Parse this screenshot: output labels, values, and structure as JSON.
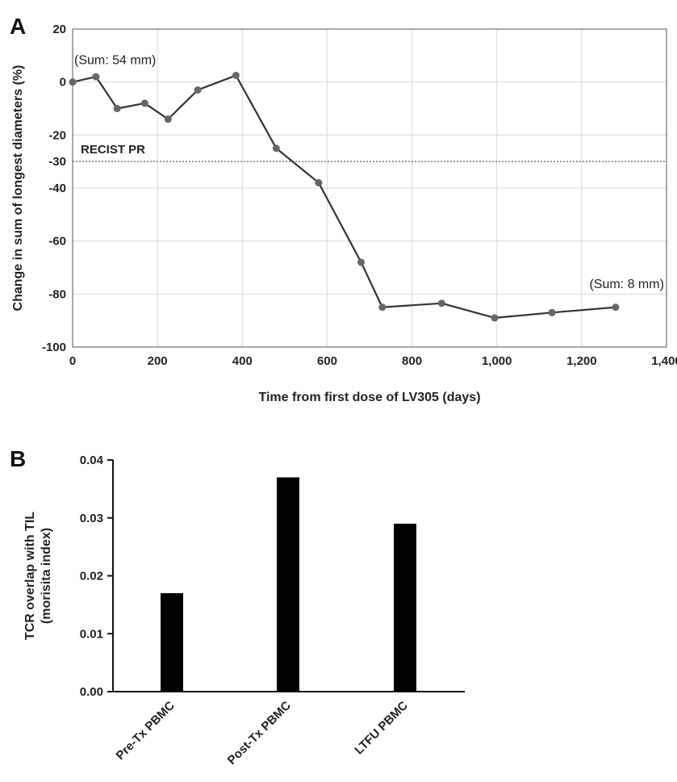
{
  "figure": {
    "panel_a_letter": "A",
    "panel_b_letter": "B"
  },
  "colors": {
    "line": "#333333",
    "marker": "#666666",
    "bar": "#000000",
    "grid": "#d9d9d9",
    "reference": "#333333"
  },
  "chart_data": [
    {
      "type": "line",
      "title": "",
      "xlabel": "Time from first dose of LV305 (days)",
      "ylabel": "Change in sum of longest diameters (%)",
      "xlim": [
        0,
        1400
      ],
      "ylim": [
        -100,
        20
      ],
      "grid": true,
      "x_ticks": [
        0,
        200,
        400,
        600,
        800,
        1000,
        1200,
        1400
      ],
      "x_tick_labels": [
        "0",
        "200",
        "400",
        "600",
        "800",
        "1,000",
        "1,200",
        "1,400"
      ],
      "y_ticks": [
        20,
        0,
        -20,
        -30,
        -40,
        -60,
        -80,
        -100
      ],
      "y_tick_labels": [
        "20",
        "0",
        "-20",
        "-30",
        "-40",
        "-60",
        "-80",
        "-100"
      ],
      "series": [
        {
          "x": [
            0,
            55,
            105,
            170,
            225,
            295,
            385,
            480,
            580,
            680,
            730,
            870,
            995,
            1130,
            1280
          ],
          "y": [
            0,
            2,
            -10,
            -8,
            -14,
            -3,
            2.5,
            -25,
            -38,
            -68,
            -85,
            -83.5,
            -89,
            -87,
            -85
          ]
        }
      ],
      "reference_line": {
        "y": -30,
        "label": "RECIST PR"
      },
      "annotations": [
        {
          "text": "(Sum: 54 mm)",
          "x": 0,
          "y": 0
        },
        {
          "text": "(Sum: 8 mm)",
          "x": 1280,
          "y": -85
        }
      ]
    },
    {
      "type": "bar",
      "title": "",
      "xlabel": "",
      "ylabel": "TCR overlap with TIL",
      "ylabel2": "(morisita index)",
      "categories": [
        "Pre-Tx PBMC",
        "Post-Tx PBMC",
        "LTFU PBMC"
      ],
      "values": [
        0.017,
        0.037,
        0.029
      ],
      "ylim": [
        0,
        0.04
      ],
      "y_ticks": [
        0,
        0.01,
        0.02,
        0.03,
        0.04
      ],
      "y_tick_labels": [
        "0.00",
        "0.01",
        "0.02",
        "0.03",
        "0.04"
      ],
      "grid": false
    }
  ]
}
